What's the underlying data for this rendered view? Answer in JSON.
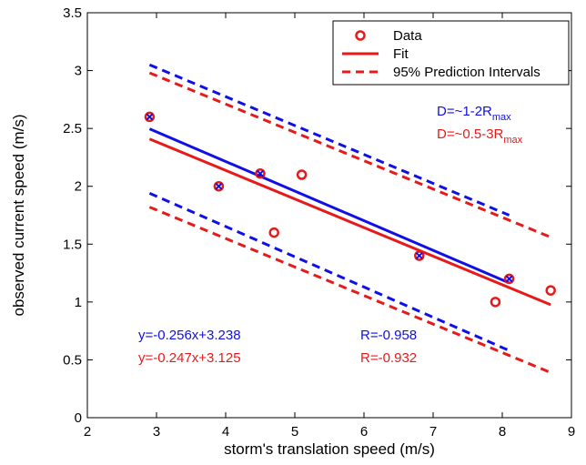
{
  "chart_data": {
    "type": "scatter",
    "xlabel": "storm's translation speed (m/s)",
    "ylabel": "observed current speed (m/s)",
    "xlim": [
      2,
      9
    ],
    "ylim": [
      0,
      3.5
    ],
    "xticks": [
      "2",
      "3",
      "4",
      "5",
      "6",
      "7",
      "8",
      "9"
    ],
    "yticks": [
      "0",
      "0.5",
      "1",
      "1.5",
      "2",
      "2.5",
      "3",
      "3.5"
    ],
    "grid": false,
    "legend": {
      "position": "top-right",
      "entries": [
        "Data",
        "Fit",
        "95% Prediction Intervals"
      ]
    },
    "colors": {
      "blue": "#1010e6",
      "red": "#e61a1a"
    },
    "series": [
      {
        "name": "D=~1-2R",
        "name_sub": "max",
        "color": "#1010e6",
        "points": [
          [
            2.9,
            2.6
          ],
          [
            3.9,
            2.0
          ],
          [
            4.5,
            2.11
          ],
          [
            6.8,
            1.4
          ],
          [
            8.1,
            1.2
          ]
        ],
        "fit": {
          "x": [
            2.9,
            8.1
          ],
          "y": [
            2.496,
            1.165
          ]
        },
        "pi_upper": {
          "x": [
            2.9,
            8.1
          ],
          "y": [
            3.05,
            1.75
          ]
        },
        "pi_lower": {
          "x": [
            2.9,
            8.1
          ],
          "y": [
            1.94,
            0.58
          ]
        },
        "equation": "y=-0.256x+3.238",
        "r": "R=-0.958"
      },
      {
        "name": "D=~0.5-3R",
        "name_sub": "max",
        "color": "#e61a1a",
        "points": [
          [
            2.9,
            2.6
          ],
          [
            3.9,
            2.0
          ],
          [
            4.5,
            2.11
          ],
          [
            4.7,
            1.6
          ],
          [
            5.1,
            2.1
          ],
          [
            6.8,
            1.4
          ],
          [
            7.9,
            1.0
          ],
          [
            8.1,
            1.2
          ],
          [
            8.7,
            1.1
          ]
        ],
        "fit": {
          "x": [
            2.9,
            8.7
          ],
          "y": [
            2.409,
            0.976
          ]
        },
        "pi_upper": {
          "x": [
            2.9,
            8.7
          ],
          "y": [
            2.98,
            1.56
          ]
        },
        "pi_lower": {
          "x": [
            2.9,
            8.7
          ],
          "y": [
            1.82,
            0.39
          ]
        },
        "equation": "y=-0.247x+3.125",
        "r": "R=-0.932"
      }
    ]
  }
}
